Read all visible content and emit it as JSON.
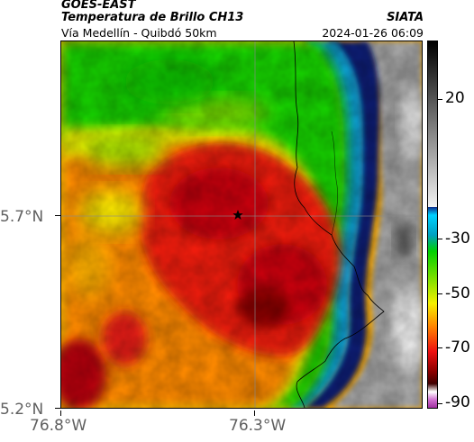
{
  "header": {
    "satellite": "GOES-EAST",
    "product": "Temperatura de Brillo CH13",
    "subtitle": "Vía Medellín - Quibdó 50km",
    "organization": "SIATA",
    "datetime": "2024-01-26 06:09"
  },
  "map": {
    "marker": "star-icon",
    "lon_labels": [
      "76.8°W",
      "76.3°W"
    ],
    "lat_labels": [
      "5.7°N",
      "5.2°N"
    ]
  },
  "colorbar": {
    "labels": [
      "20",
      "-30",
      "-50",
      "-70",
      "-90"
    ]
  },
  "colors": {
    "deep_red": "#c8000a",
    "red": "#ee1a10",
    "orange": "#ff8000",
    "yellow": "#f5f000",
    "green": "#15d400",
    "cyan": "#00bcd8",
    "navy": "#0a1a70",
    "gray": "#9a9a9a",
    "magenta": "#c24dbe"
  }
}
